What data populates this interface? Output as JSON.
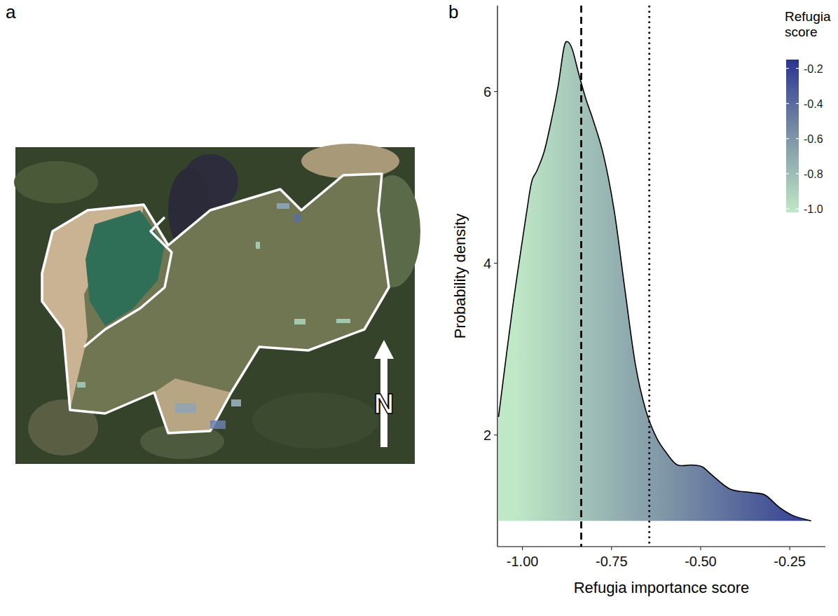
{
  "figure": {
    "panel_labels": [
      "a",
      "b"
    ],
    "north_label": "N"
  },
  "chart_data": {
    "type": "area",
    "x_label": "Refugia importance score",
    "y_label": "Probability density",
    "x": [
      -1.067,
      -1.028,
      -0.988,
      -0.974,
      -0.959,
      -0.939,
      -0.919,
      -0.9,
      -0.884,
      -0.874,
      -0.86,
      -0.841,
      -0.821,
      -0.801,
      -0.772,
      -0.742,
      -0.713,
      -0.683,
      -0.654,
      -0.624,
      -0.594,
      -0.565,
      -0.526,
      -0.496,
      -0.467,
      -0.417,
      -0.358,
      -0.319,
      -0.28,
      -0.24,
      -0.19
    ],
    "values": [
      2.21,
      3.47,
      4.6,
      4.95,
      5.08,
      5.3,
      5.66,
      6.06,
      6.5,
      6.58,
      6.49,
      6.19,
      5.9,
      5.66,
      5.25,
      4.6,
      3.71,
      2.82,
      2.29,
      1.97,
      1.78,
      1.65,
      1.65,
      1.63,
      1.53,
      1.37,
      1.33,
      1.3,
      1.16,
      1.06,
      1.0
    ],
    "baseline": 1,
    "xlim": [
      -1.07,
      -0.15
    ],
    "ylim": [
      0.7,
      7.0
    ],
    "xticks": [
      {
        "value": -1,
        "label": "-1.00"
      },
      {
        "value": -0.75,
        "label": "-0.75"
      },
      {
        "value": -0.5,
        "label": "-0.50"
      },
      {
        "value": -0.25,
        "label": "-0.25"
      }
    ],
    "yticks": [
      2,
      4,
      6
    ],
    "vlines": [
      {
        "value": -0.835,
        "line_style": "dashed"
      },
      {
        "value": -0.644,
        "line_style": "dotted"
      }
    ],
    "colorbar": {
      "title": "Refugia score",
      "range": [
        -1.02,
        -0.15
      ],
      "ticks": [
        -0.2,
        -0.4,
        -0.6,
        -0.8,
        {
          "value": -1,
          "label": "-1.0"
        }
      ],
      "colors": [
        "#bfe8c6",
        "#7d93a6",
        "#2a3490"
      ]
    },
    "legend": "top-right",
    "grid": false
  }
}
